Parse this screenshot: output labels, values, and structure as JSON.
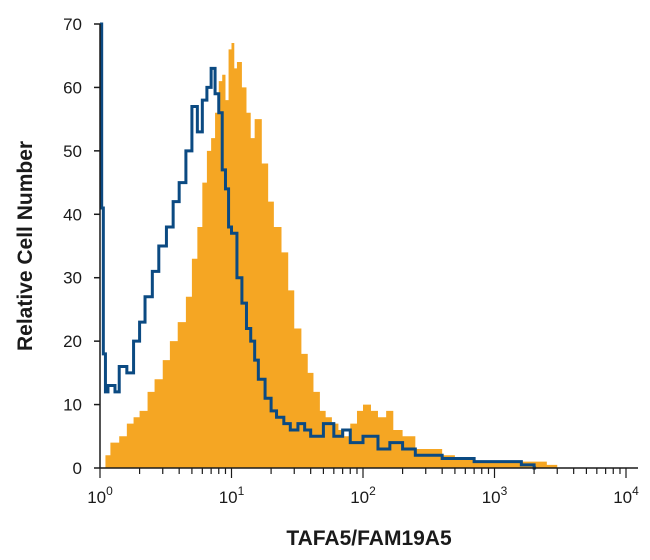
{
  "chart_data": {
    "type": "histogram",
    "title": "",
    "xlabel": "TAFA5/FAM19A5",
    "ylabel": "Relative Cell Number",
    "x_scale": "log",
    "xlim": [
      1,
      10000
    ],
    "ylim": [
      0,
      70
    ],
    "grid": false,
    "legend": "none",
    "y_ticks": [
      0,
      10,
      20,
      30,
      40,
      50,
      60,
      70
    ],
    "x_ticks": [
      {
        "value": 1,
        "base": "10",
        "exp": "0"
      },
      {
        "value": 10,
        "base": "10",
        "exp": "1"
      },
      {
        "value": 100,
        "base": "10",
        "exp": "2"
      },
      {
        "value": 1000,
        "base": "10",
        "exp": "3"
      },
      {
        "value": 10000,
        "base": "10",
        "exp": "4"
      }
    ],
    "series": [
      {
        "color": "#f5a623",
        "style": "filled",
        "x": [
          1.0,
          1.1,
          1.2,
          1.4,
          1.6,
          1.8,
          2.0,
          2.3,
          2.6,
          3.0,
          3.4,
          3.9,
          4.5,
          5.0,
          5.5,
          6.0,
          6.5,
          7.0,
          7.5,
          8.0,
          8.5,
          9.0,
          9.5,
          10.0,
          10.5,
          11.0,
          12.0,
          13.0,
          14.0,
          15.0,
          17.0,
          19.0,
          21.0,
          24.0,
          27.0,
          30.0,
          34.0,
          38.0,
          42.0,
          47.0,
          52.0,
          58.0,
          65.0,
          72.0,
          80.0,
          90.0,
          100.0,
          115.0,
          130.0,
          150.0,
          170.0,
          200.0,
          250.0,
          300.0,
          400.0,
          500.0,
          700.0,
          1000.0,
          1400.0,
          2000.0,
          2500.0,
          3000.0
        ],
        "values": [
          0,
          2,
          4,
          5,
          7,
          8,
          9,
          12,
          14,
          17,
          20,
          23,
          27,
          33,
          38,
          45,
          50,
          52,
          56,
          61,
          62,
          58,
          66,
          67,
          63,
          64,
          60,
          56,
          52,
          55,
          48,
          42,
          38,
          34,
          28,
          22,
          18,
          15,
          12,
          9,
          8,
          7,
          6,
          5,
          7,
          9,
          10,
          9,
          8,
          9,
          6,
          5,
          3,
          3,
          2,
          1.5,
          1,
          1,
          1,
          1,
          0.5,
          0
        ]
      },
      {
        "color": "#0b4a82",
        "style": "outline",
        "x": [
          1.0,
          1.03,
          1.06,
          1.1,
          1.15,
          1.2,
          1.3,
          1.4,
          1.6,
          1.8,
          2.0,
          2.2,
          2.5,
          2.8,
          3.2,
          3.6,
          4.0,
          4.5,
          5.0,
          5.5,
          6.0,
          6.5,
          7.0,
          7.5,
          8.0,
          8.5,
          9.0,
          9.5,
          10.0,
          11.0,
          12.0,
          13.0,
          14.0,
          15.0,
          16.0,
          18.0,
          20.0,
          22.0,
          25.0,
          28.0,
          32.0,
          36.0,
          40.0,
          50.0,
          60.0,
          70.0,
          80.0,
          100.0,
          130.0,
          160.0,
          200.0,
          250.0,
          300.0,
          400.0,
          500.0,
          700.0,
          1000.0,
          1300.0,
          1600.0,
          2000.0
        ],
        "values": [
          70,
          41,
          18,
          12,
          13,
          13,
          12,
          16,
          15,
          20,
          23,
          27,
          31,
          35,
          38,
          42,
          45,
          50,
          57,
          53,
          58,
          60,
          63,
          59,
          56,
          47,
          44,
          38,
          37,
          30,
          26,
          22,
          20,
          17,
          14,
          11,
          9,
          8,
          7,
          6,
          7,
          6,
          5,
          7,
          5,
          6,
          4,
          5,
          3,
          4,
          3,
          2,
          2,
          1.5,
          1.5,
          1,
          1,
          1,
          0.5,
          0
        ]
      }
    ]
  }
}
